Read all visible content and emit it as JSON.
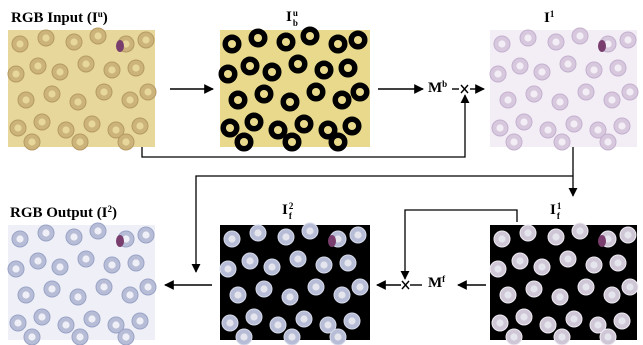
{
  "labels": {
    "rgb_input": {
      "main": "RGB  Input  (I",
      "sup": "u",
      "close": ")"
    },
    "binary_image": {
      "main": "I",
      "sub": "b",
      "sup": "u"
    },
    "mask_b": {
      "main": "M",
      "sup": "b"
    },
    "intermediate": {
      "main": "I",
      "sup": "1"
    },
    "rgb_output": {
      "main": "RGB Output  (I",
      "sup": "2",
      "close": ")"
    },
    "fused_2": {
      "main": "I",
      "sub": "f",
      "sup": "2"
    },
    "fused_1": {
      "main": "I",
      "sub": "f",
      "sup": "1"
    },
    "mask_f": {
      "main": "M",
      "sup": "f"
    }
  },
  "colors": {
    "yellow_bg": "#e7d79a",
    "yellow_binary_bg": "#e8d98c",
    "pale_bg": "#f3eef5",
    "output_bg": "#eeeff7",
    "black": "#000000",
    "cell_yellow": "#cbb37a",
    "cell_pale": "#d7c8de",
    "cell_blue": "#b7bdd6",
    "parasite": "#7a3e6e"
  },
  "operators": [
    "multiply-node-top",
    "multiply-node-bottom"
  ]
}
